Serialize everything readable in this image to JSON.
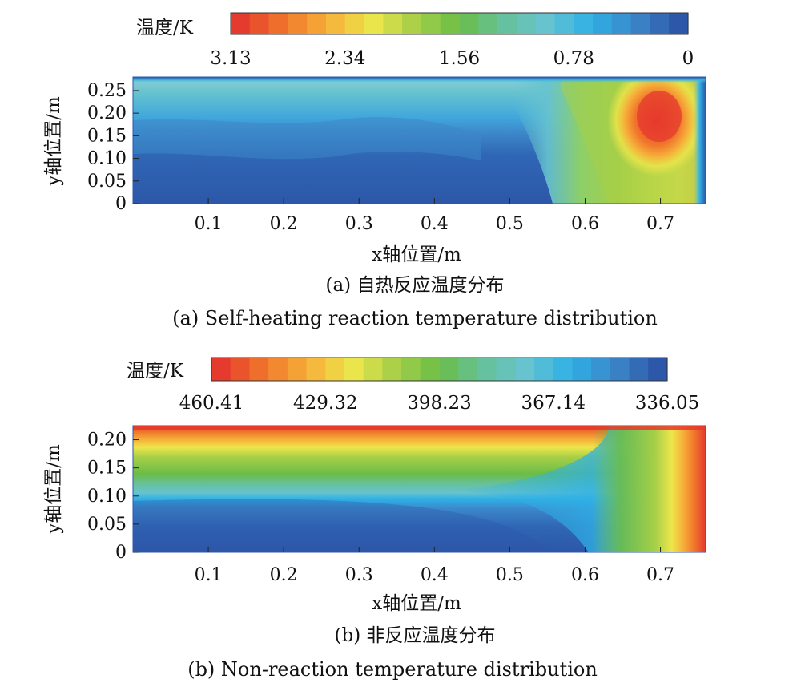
{
  "figure": {
    "panel_a": {
      "caption_zh": "(a) 自热反应温度分布",
      "caption_en": "(a) Self-heating reaction temperature distribution"
    },
    "panel_b": {
      "caption_zh": "(b) 非反应温度分布",
      "caption_en": "(b) Non-reaction temperature distribution"
    }
  },
  "chart_data": [
    {
      "type": "heatmap",
      "colorbar_label": "温度/K",
      "colorbar_ticks": [
        "3.13",
        "2.34",
        "1.56",
        "0.78",
        "0"
      ],
      "colorbar_range": [
        3.13,
        0
      ],
      "xlabel": "x轴位置/m",
      "ylabel": "y轴位置/m",
      "xticks": [
        "0.1",
        "0.2",
        "0.3",
        "0.4",
        "0.5",
        "0.6",
        "0.7"
      ],
      "yticks": [
        "0",
        "0.05",
        "0.10",
        "0.15",
        "0.20",
        "0.25"
      ],
      "xlim": [
        0,
        0.76
      ],
      "ylim": [
        0,
        0.28
      ],
      "field": "cool (blue) over most of the domain; lighter cyan band near top; warm region x≈0.55–0.75 with hotspot ≈3.1 K at x≈0.70, y≈0.19; thin cool wall at x≈0.76"
    },
    {
      "type": "heatmap",
      "colorbar_label": "温度/K",
      "colorbar_ticks": [
        "460.41",
        "429.32",
        "398.23",
        "367.14",
        "336.05"
      ],
      "colorbar_range": [
        460.41,
        336.05
      ],
      "xlabel": "x轴位置/m",
      "ylabel": "y轴位置/m",
      "xticks": [
        "0.1",
        "0.2",
        "0.3",
        "0.4",
        "0.5",
        "0.6",
        "0.7"
      ],
      "yticks": [
        "0",
        "0.05",
        "0.10",
        "0.15",
        "0.20"
      ],
      "xlim": [
        0,
        0.76
      ],
      "ylim": [
        0,
        0.225
      ],
      "field": "hot (~460 K) along top edge y≈0.22 and right wall x≈0.76; cool (~336 K) at bottom-left; smooth gradient between"
    }
  ],
  "colors": {
    "scale_hot_to_cold": [
      "#e53a2e",
      "#f0762c",
      "#f6b03a",
      "#ede64a",
      "#a6cf48",
      "#6bbd47",
      "#66c19c",
      "#67c3cf",
      "#2fb0e6",
      "#3c86c9",
      "#2d57a8"
    ]
  }
}
